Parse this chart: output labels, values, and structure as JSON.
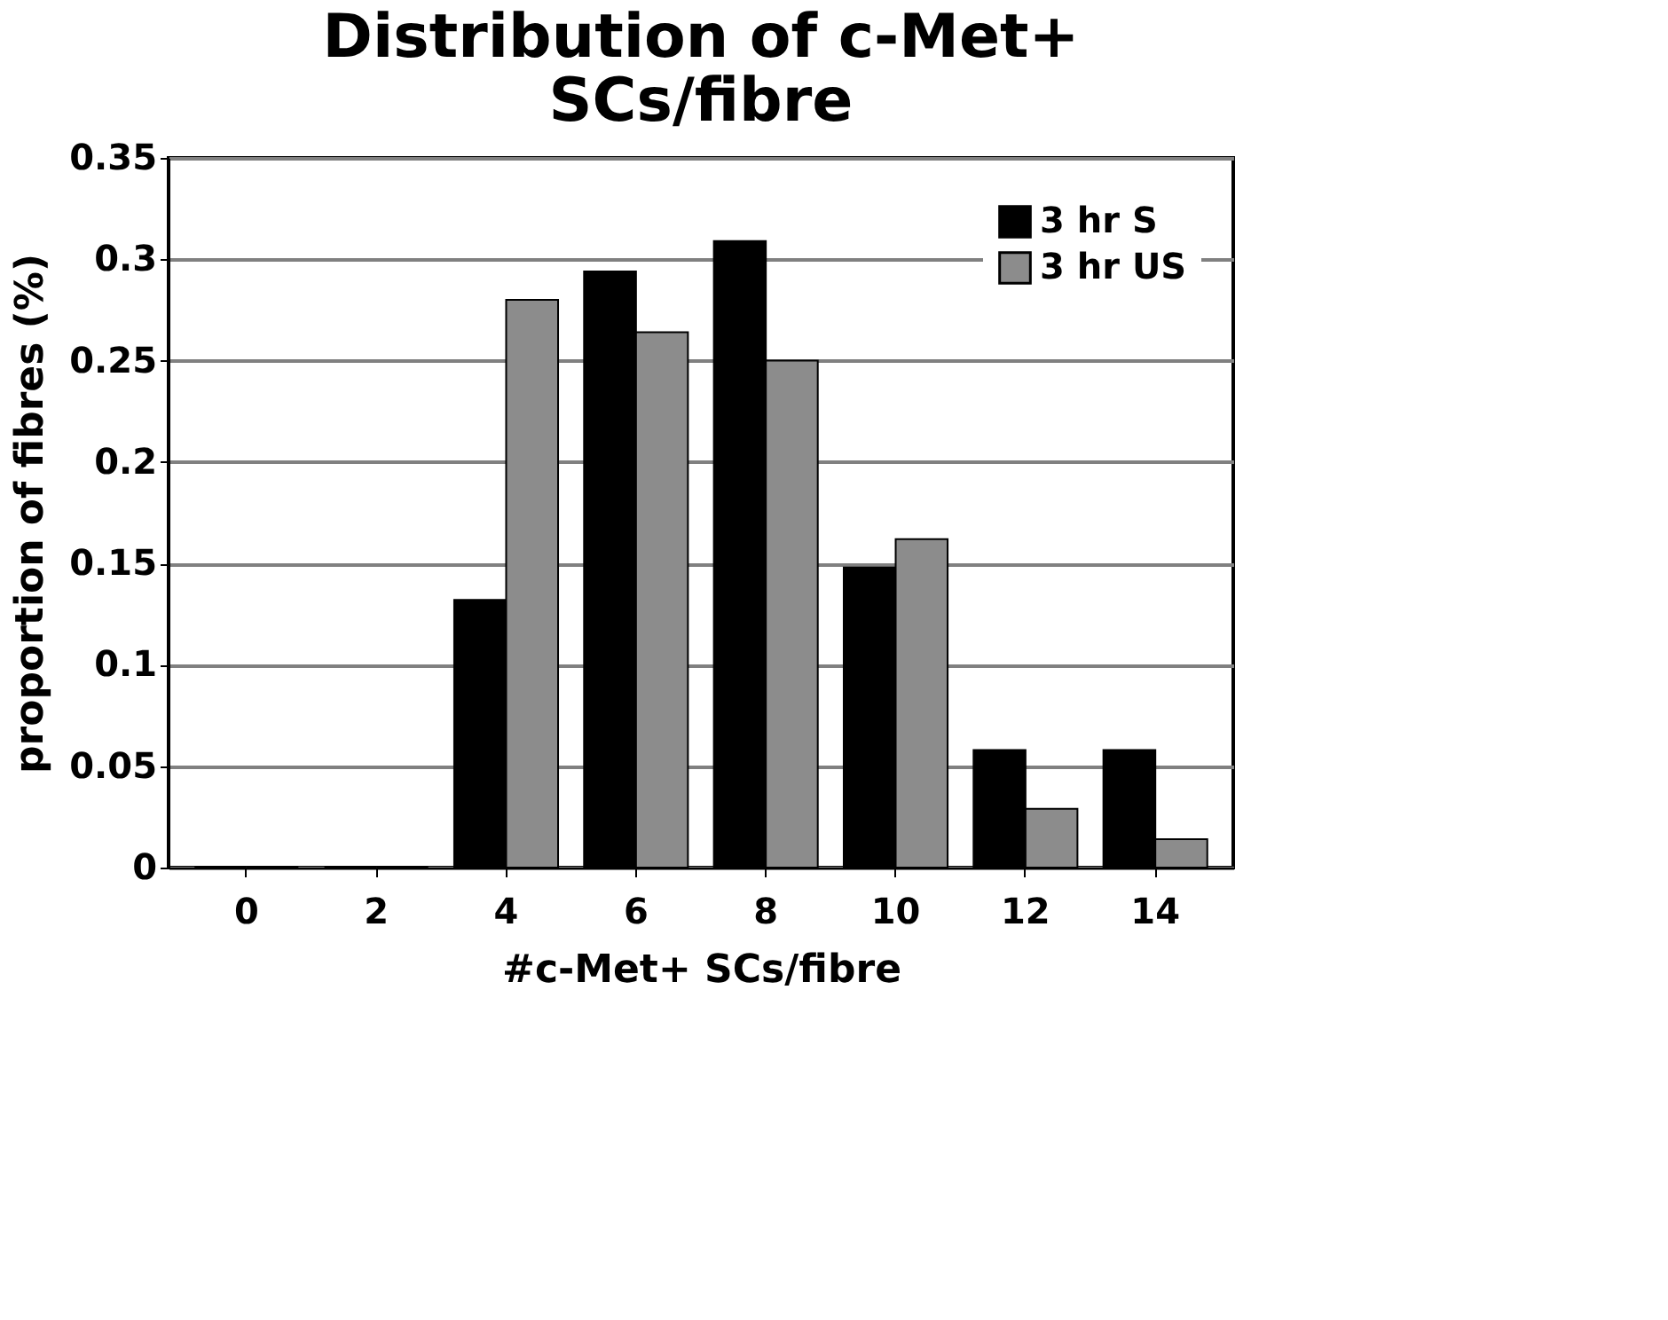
{
  "chart_data": {
    "type": "bar",
    "title": [
      "Distribution of c-Met+",
      "SCs/fibre"
    ],
    "xlabel": "#c-Met+ SCs/fibre",
    "ylabel": "proportion of fibres (%)",
    "categories": [
      "0",
      "2",
      "4",
      "6",
      "8",
      "10",
      "12",
      "14"
    ],
    "series": [
      {
        "name": "3 hr S",
        "color": "#000000",
        "values": [
          0,
          0,
          0.132,
          0.294,
          0.309,
          0.148,
          0.058,
          0.058
        ]
      },
      {
        "name": "3 hr US",
        "color": "#8c8c8c",
        "values": [
          0,
          0,
          0.28,
          0.264,
          0.25,
          0.162,
          0.029,
          0.014
        ]
      }
    ],
    "ylim": [
      0,
      0.35
    ],
    "yticks": [
      0,
      0.05,
      0.1,
      0.15,
      0.2,
      0.25,
      0.3,
      0.35
    ],
    "grid": "y",
    "legend": "top right"
  }
}
